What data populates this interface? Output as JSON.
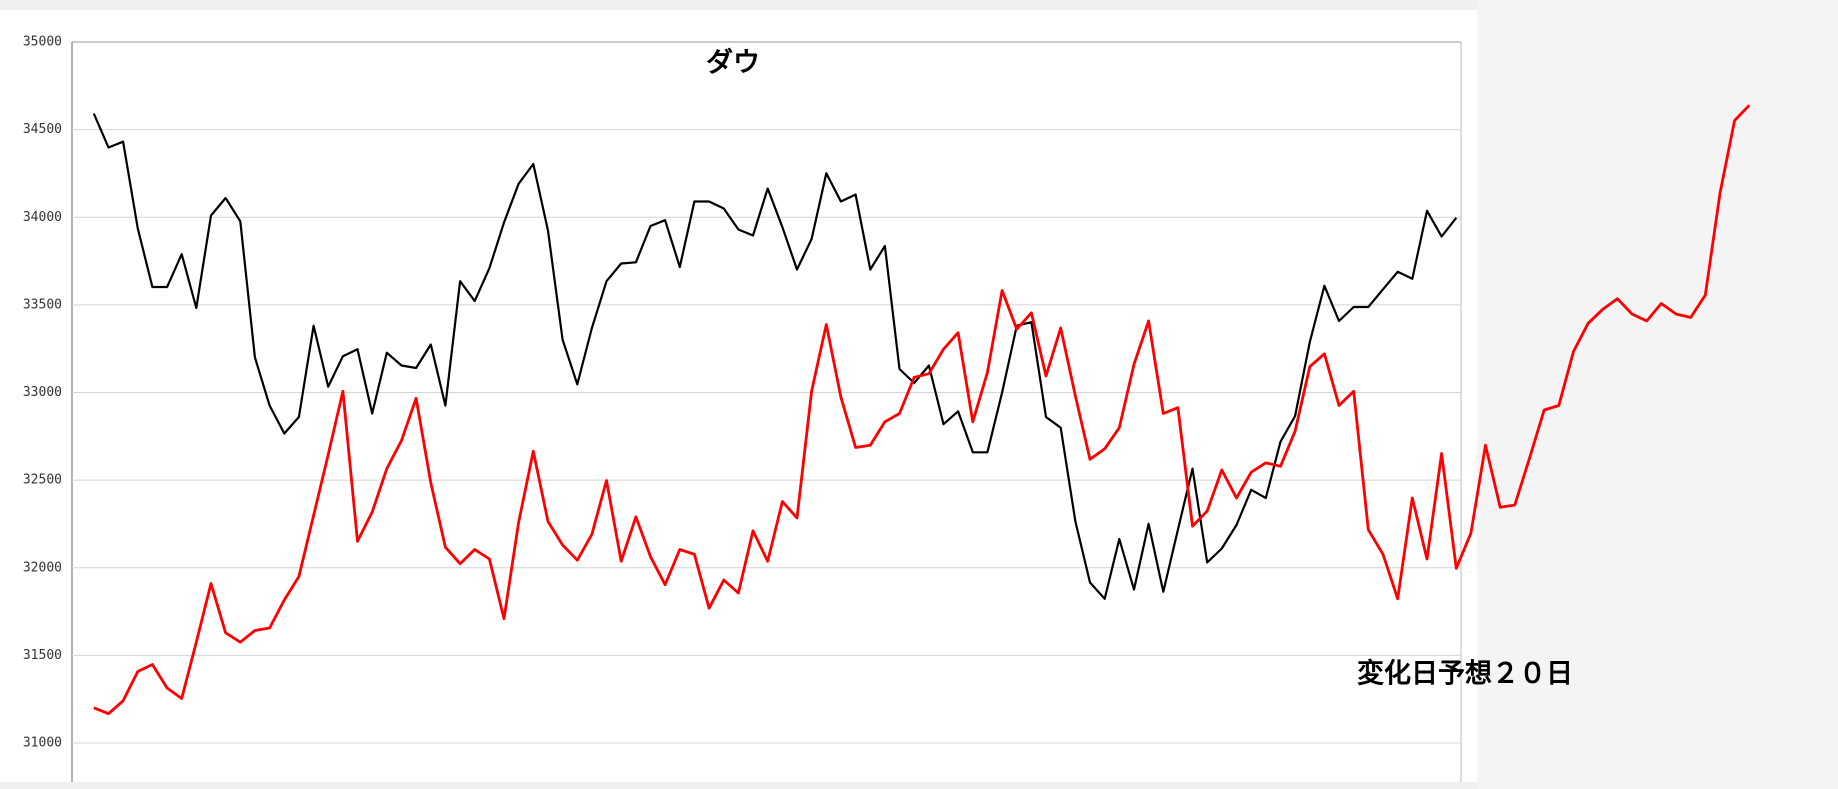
{
  "chart_data": {
    "type": "line",
    "title": "ダウ",
    "annotation": "変化日予想２０日",
    "categories": [
      null,
      null,
      null,
      null,
      null,
      null,
      null,
      null,
      null,
      null,
      null,
      null,
      null,
      null,
      null,
      null,
      null,
      null,
      null,
      null,
      null,
      null,
      null,
      null,
      null,
      null,
      null,
      null,
      null,
      null,
      null,
      null,
      null,
      null,
      null,
      null,
      null,
      null,
      null,
      null,
      null,
      null,
      null,
      null,
      null,
      null,
      null,
      null,
      null,
      null,
      null,
      null,
      null,
      null,
      null,
      null,
      null,
      null,
      null,
      null,
      null,
      null,
      null,
      null,
      null,
      null,
      null,
      null,
      null,
      null,
      null,
      null,
      null,
      null,
      null,
      null,
      null,
      null,
      null,
      null,
      null,
      null,
      null,
      null,
      null,
      null,
      null,
      null,
      null,
      null,
      null,
      null,
      null,
      null,
      null,
      null,
      null,
      null,
      null,
      null,
      null,
      null,
      null,
      null,
      null,
      null,
      null,
      null,
      null,
      null,
      null,
      null,
      null,
      null
    ],
    "series": [
      {
        "color": "#000000",
        "values": [
          34592,
          34398,
          34431,
          33936,
          33602,
          33602,
          33789,
          33482,
          34010,
          34110,
          33977,
          33201,
          32926,
          32766,
          32860,
          33381,
          33033,
          33207,
          33247,
          32880,
          33227,
          33154,
          33140,
          33274,
          32926,
          33635,
          33522,
          33709,
          33970,
          34191,
          34304,
          33923,
          33301,
          33047,
          33368,
          33635,
          33736,
          33743,
          33950,
          33983,
          33716,
          34090,
          34090,
          34050,
          33930,
          33896,
          34164,
          33943,
          33702,
          33876,
          34251,
          34090,
          34130,
          33702,
          33836,
          33134,
          33054,
          33154,
          32819,
          32893,
          32659,
          32659,
          33000,
          33381,
          33401,
          32860,
          32799,
          32264,
          31916,
          31823,
          32164,
          31876,
          32251,
          31863,
          32217,
          32565,
          32030,
          32110,
          32244,
          32445,
          32398,
          32719,
          32866,
          33288,
          33609,
          33408,
          33488,
          33488,
          33589,
          33689,
          33649,
          34037,
          33890,
          33997,
          null,
          null,
          null,
          null,
          null,
          null,
          null,
          null,
          null,
          null,
          null,
          null,
          null,
          null,
          null,
          null,
          null,
          null,
          null,
          null
        ]
      },
      {
        "color": "#ff0000",
        "values": [
          31201,
          31167,
          31241,
          31408,
          31448,
          31314,
          31254,
          31575,
          31910,
          31629,
          31575,
          31642,
          31656,
          31816,
          31950,
          32298,
          32645,
          33007,
          32151,
          32318,
          32565,
          32726,
          32967,
          32485,
          32117,
          32023,
          32104,
          32050,
          31709,
          32258,
          32665,
          32264,
          32130,
          32043,
          32191,
          32498,
          32037,
          32291,
          32063,
          31903,
          32104,
          32077,
          31769,
          31930,
          31856,
          32211,
          32037,
          32378,
          32284,
          33007,
          33388,
          32973,
          32686,
          32699,
          32833,
          32880,
          33087,
          33107,
          33247,
          33341,
          32833,
          33114,
          33582,
          33361,
          33455,
          33094,
          33368,
          32980,
          32619,
          32679,
          32799,
          33161,
          33408,
          32880,
          32913,
          32237,
          32324,
          32558,
          32398,
          32545,
          32599,
          32579,
          32779,
          33147,
          33221,
          32926,
          33007,
          32217,
          32077,
          31823,
          32398,
          32050,
          32652,
          31997,
          32197,
          32699,
          32345,
          32358,
          32625,
          32900,
          32926,
          33234,
          33395,
          33475,
          33535,
          33448,
          33408,
          33508,
          33448,
          33428,
          33555,
          34137,
          34552,
          34639
        ]
      }
    ],
    "ylim": [
      31000,
      35000
    ],
    "yticks": [
      31000,
      31500,
      32000,
      32500,
      33000,
      33500,
      34000,
      34500,
      35000
    ],
    "grid": true
  }
}
